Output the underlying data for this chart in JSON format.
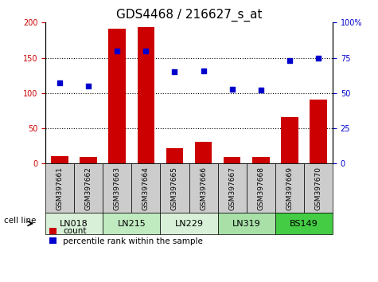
{
  "title": "GDS4468 / 216627_s_at",
  "samples": [
    "GSM397661",
    "GSM397662",
    "GSM397663",
    "GSM397664",
    "GSM397665",
    "GSM397666",
    "GSM397667",
    "GSM397668",
    "GSM397669",
    "GSM397670"
  ],
  "count_values": [
    10,
    9,
    191,
    194,
    22,
    31,
    9,
    9,
    66,
    91
  ],
  "percentile_values": [
    57,
    55,
    80,
    80,
    65,
    66,
    53,
    52,
    73,
    75
  ],
  "cell_lines": [
    {
      "label": "LN018",
      "start": 0,
      "end": 2,
      "color": "#d8f0d8"
    },
    {
      "label": "LN215",
      "start": 2,
      "end": 4,
      "color": "#c0eac0"
    },
    {
      "label": "LN229",
      "start": 4,
      "end": 6,
      "color": "#d8f0d8"
    },
    {
      "label": "LN319",
      "start": 6,
      "end": 8,
      "color": "#a8e0a8"
    },
    {
      "label": "BS149",
      "start": 8,
      "end": 10,
      "color": "#44cc44"
    }
  ],
  "bar_color": "#cc0000",
  "dot_color": "#0000cc",
  "left_ylim": [
    0,
    200
  ],
  "right_ylim": [
    0,
    100
  ],
  "left_yticks": [
    0,
    50,
    100,
    150,
    200
  ],
  "right_yticks": [
    0,
    25,
    50,
    75,
    100
  ],
  "grid_values": [
    50,
    100,
    150
  ],
  "bg_color": "#ffffff",
  "plot_bg": "#ffffff",
  "left_tick_color": "#cc0000",
  "right_tick_color": "#0000cc",
  "legend_count_label": "count",
  "legend_pct_label": "percentile rank within the sample",
  "cell_line_label": "cell line",
  "title_fontsize": 11,
  "tick_fontsize": 7,
  "sample_label_fontsize": 6.5,
  "cell_line_fontsize": 8
}
